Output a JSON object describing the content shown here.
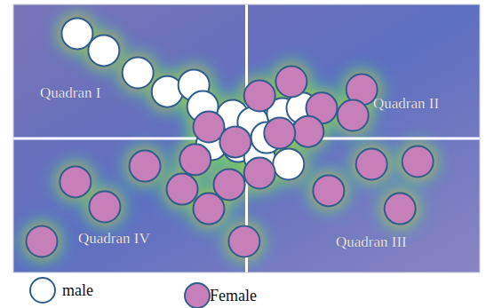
{
  "chart_data": {
    "type": "scatter",
    "xlim": [
      0,
      100
    ],
    "ylim": [
      0,
      100
    ],
    "tick_labels": false,
    "legend": "bottom",
    "annotations": [
      "Quadran I",
      "Quadran II",
      "Quadran III",
      "Quadran IV"
    ],
    "series": [
      {
        "name": "male",
        "color": "#ffffff",
        "marker": "circle",
        "x": [
          13.7,
          19.4,
          26.7,
          33.0,
          38.7,
          40.6,
          47.0,
          51.4,
          57.7,
          61.9,
          42.5,
          48.2,
          52.8,
          59.0,
          54.3
        ],
        "values": [
          89.1,
          82.8,
          74.5,
          67.5,
          69.9,
          61.9,
          58.6,
          56.0,
          59.3,
          61.3,
          47.7,
          47.0,
          43.0,
          40.4,
          50.3
        ]
      },
      {
        "name": "Female",
        "color": "#c77fba",
        "marker": "circle",
        "x": [
          52.8,
          59.6,
          74.7,
          66.1,
          72.8,
          63.2,
          57.1,
          41.9,
          47.6,
          39.0,
          28.2,
          46.3,
          36.2,
          41.9,
          52.8,
          13.3,
          19.6,
          6.1,
          49.5,
          67.6,
          76.8,
          86.7,
          82.9
        ],
        "values": [
          65.9,
          71.2,
          68.2,
          61.3,
          58.6,
          52.6,
          52.0,
          54.3,
          48.7,
          42.1,
          39.7,
          32.8,
          31.1,
          23.8,
          37.1,
          33.8,
          24.5,
          11.6,
          11.6,
          30.5,
          40.4,
          41.4,
          23.8
        ]
      }
    ]
  }
}
